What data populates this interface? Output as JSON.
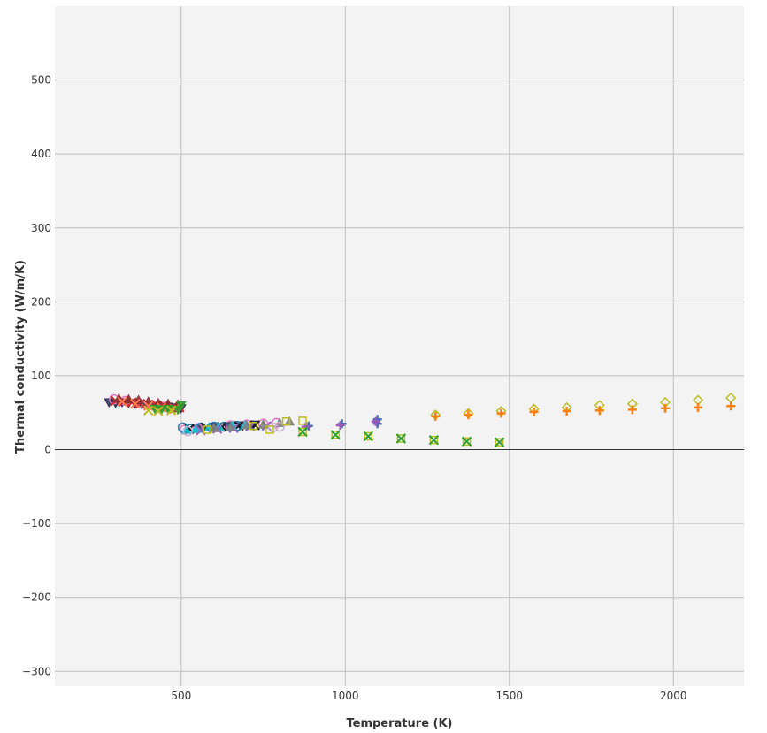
{
  "chart_data": {
    "type": "scatter",
    "xlabel": "Temperature (K)",
    "ylabel": "Thermal conductivity (W/m/K)",
    "xlim": [
      115,
      2215
    ],
    "ylim": [
      -320,
      600
    ],
    "x_ticks": [
      500,
      1000,
      1500,
      2000
    ],
    "y_ticks": [
      -300,
      -200,
      -100,
      0,
      100,
      200,
      300,
      400,
      500
    ],
    "x_tick_labels": [
      "500",
      "1000",
      "1500",
      "2000"
    ],
    "y_tick_labels": [
      "−300",
      "−200",
      "−100",
      "0",
      "100",
      "200",
      "300",
      "400",
      "500"
    ],
    "grid": true,
    "legend": "none",
    "background": "#f3f3f3",
    "grid_color": "#bfbfbf",
    "zero_line_color": "#333333",
    "series": [
      {
        "marker": "triangle-down",
        "color": "#2b2b52",
        "points": [
          [
            280,
            64
          ],
          [
            300,
            63
          ],
          [
            320,
            64
          ],
          [
            340,
            63
          ],
          [
            360,
            62
          ],
          [
            380,
            61
          ],
          [
            400,
            60
          ],
          [
            420,
            59
          ],
          [
            440,
            58
          ],
          [
            460,
            58
          ],
          [
            480,
            57
          ],
          [
            500,
            56
          ],
          [
            560,
            30
          ],
          [
            600,
            31
          ],
          [
            640,
            32
          ],
          [
            680,
            33
          ],
          [
            720,
            34
          ]
        ]
      },
      {
        "marker": "circle",
        "color": "#e377c2",
        "points": [
          [
            295,
            68
          ],
          [
            330,
            66
          ],
          [
            370,
            63
          ],
          [
            410,
            60
          ],
          [
            450,
            58
          ],
          [
            510,
            27
          ],
          [
            550,
            29
          ],
          [
            600,
            31
          ],
          [
            650,
            33
          ],
          [
            700,
            34
          ],
          [
            750,
            35
          ],
          [
            790,
            36
          ]
        ]
      },
      {
        "marker": "x",
        "color": "#d62728",
        "points": [
          [
            300,
            66
          ],
          [
            325,
            65
          ],
          [
            350,
            64
          ],
          [
            375,
            62
          ],
          [
            400,
            61
          ],
          [
            425,
            60
          ],
          [
            450,
            59
          ],
          [
            475,
            58
          ],
          [
            495,
            57
          ]
        ]
      },
      {
        "marker": "triangle-up",
        "color": "#8c2d2d",
        "points": [
          [
            310,
            69
          ],
          [
            340,
            68
          ],
          [
            370,
            67
          ],
          [
            400,
            65
          ],
          [
            430,
            63
          ],
          [
            460,
            62
          ],
          [
            490,
            61
          ]
        ]
      },
      {
        "marker": "x",
        "color": "#ff7f50",
        "points": [
          [
            320,
            65
          ],
          [
            360,
            62
          ],
          [
            400,
            59
          ],
          [
            440,
            57
          ],
          [
            480,
            55
          ]
        ]
      },
      {
        "marker": "triangle-down",
        "color": "#2ca02c",
        "points": [
          [
            420,
            55
          ],
          [
            440,
            54
          ],
          [
            460,
            55
          ],
          [
            490,
            54
          ],
          [
            500,
            60
          ]
        ]
      },
      {
        "marker": "x",
        "color": "#bcbd22",
        "points": [
          [
            400,
            53
          ],
          [
            430,
            52
          ],
          [
            470,
            53
          ]
        ]
      },
      {
        "marker": "circle",
        "color": "#1f77b4",
        "points": [
          [
            505,
            30
          ],
          [
            530,
            28
          ],
          [
            560,
            30
          ],
          [
            600,
            31
          ],
          [
            630,
            31
          ],
          [
            670,
            32
          ]
        ]
      },
      {
        "marker": "x",
        "color": "#1a1a1a",
        "points": [
          [
            525,
            28
          ],
          [
            575,
            30
          ],
          [
            625,
            31
          ],
          [
            675,
            32
          ],
          [
            725,
            33
          ]
        ]
      },
      {
        "marker": "triangle-up",
        "color": "#17becf",
        "points": [
          [
            515,
            27
          ],
          [
            545,
            28
          ],
          [
            585,
            30
          ],
          [
            615,
            31
          ],
          [
            655,
            32
          ],
          [
            695,
            33
          ]
        ]
      },
      {
        "marker": "x",
        "color": "#9467bd",
        "points": [
          [
            560,
            26
          ],
          [
            610,
            28
          ],
          [
            660,
            29
          ],
          [
            710,
            31
          ],
          [
            760,
            32
          ]
        ]
      },
      {
        "marker": "triangle-up",
        "color": "#7f7f7f",
        "points": [
          [
            600,
            29
          ],
          [
            650,
            30
          ],
          [
            700,
            33
          ],
          [
            750,
            34
          ],
          [
            800,
            36
          ],
          [
            830,
            38
          ]
        ]
      },
      {
        "marker": "circle",
        "color": "#c5b0d5",
        "points": [
          [
            520,
            25
          ],
          [
            780,
            30
          ],
          [
            800,
            31
          ]
        ]
      },
      {
        "marker": "square",
        "color": "#bcbd22",
        "points": [
          [
            580,
            27
          ],
          [
            720,
            32
          ],
          [
            770,
            27
          ],
          [
            820,
            38
          ]
        ]
      },
      {
        "marker": "plus",
        "color": "#4a6fb5",
        "points": [
          [
            888,
            32
          ],
          [
            990,
            35
          ],
          [
            1098,
            41
          ],
          [
            1098,
            35
          ]
        ]
      },
      {
        "marker": "plus",
        "color": "#9b59b6",
        "points": [
          [
            880,
            31
          ],
          [
            985,
            33
          ],
          [
            1093,
            38
          ]
        ]
      },
      {
        "marker": "square",
        "color": "#bcbd22",
        "points": [
          [
            870,
            39
          ],
          [
            870,
            24
          ],
          [
            970,
            20
          ],
          [
            1070,
            18
          ],
          [
            1170,
            15
          ],
          [
            1270,
            13
          ],
          [
            1370,
            11
          ],
          [
            1470,
            10
          ]
        ]
      },
      {
        "marker": "x",
        "color": "#2ca02c",
        "points": [
          [
            870,
            24
          ],
          [
            970,
            20
          ],
          [
            1070,
            18
          ],
          [
            1170,
            15
          ],
          [
            1270,
            13
          ],
          [
            1370,
            11
          ],
          [
            1470,
            10
          ]
        ]
      },
      {
        "marker": "diamond",
        "color": "#bcbd22",
        "points": [
          [
            1275,
            47
          ],
          [
            1375,
            49
          ],
          [
            1475,
            52
          ],
          [
            1575,
            55
          ],
          [
            1675,
            57
          ],
          [
            1775,
            60
          ],
          [
            1875,
            62
          ],
          [
            1975,
            64
          ],
          [
            2075,
            67
          ],
          [
            2175,
            70
          ]
        ]
      },
      {
        "marker": "plus",
        "color": "#ff7f0e",
        "points": [
          [
            1275,
            45
          ],
          [
            1375,
            47
          ],
          [
            1475,
            49
          ],
          [
            1575,
            51
          ],
          [
            1675,
            52
          ],
          [
            1775,
            53
          ],
          [
            1875,
            54
          ],
          [
            1975,
            56
          ],
          [
            2075,
            57
          ],
          [
            2175,
            59
          ]
        ]
      }
    ]
  }
}
